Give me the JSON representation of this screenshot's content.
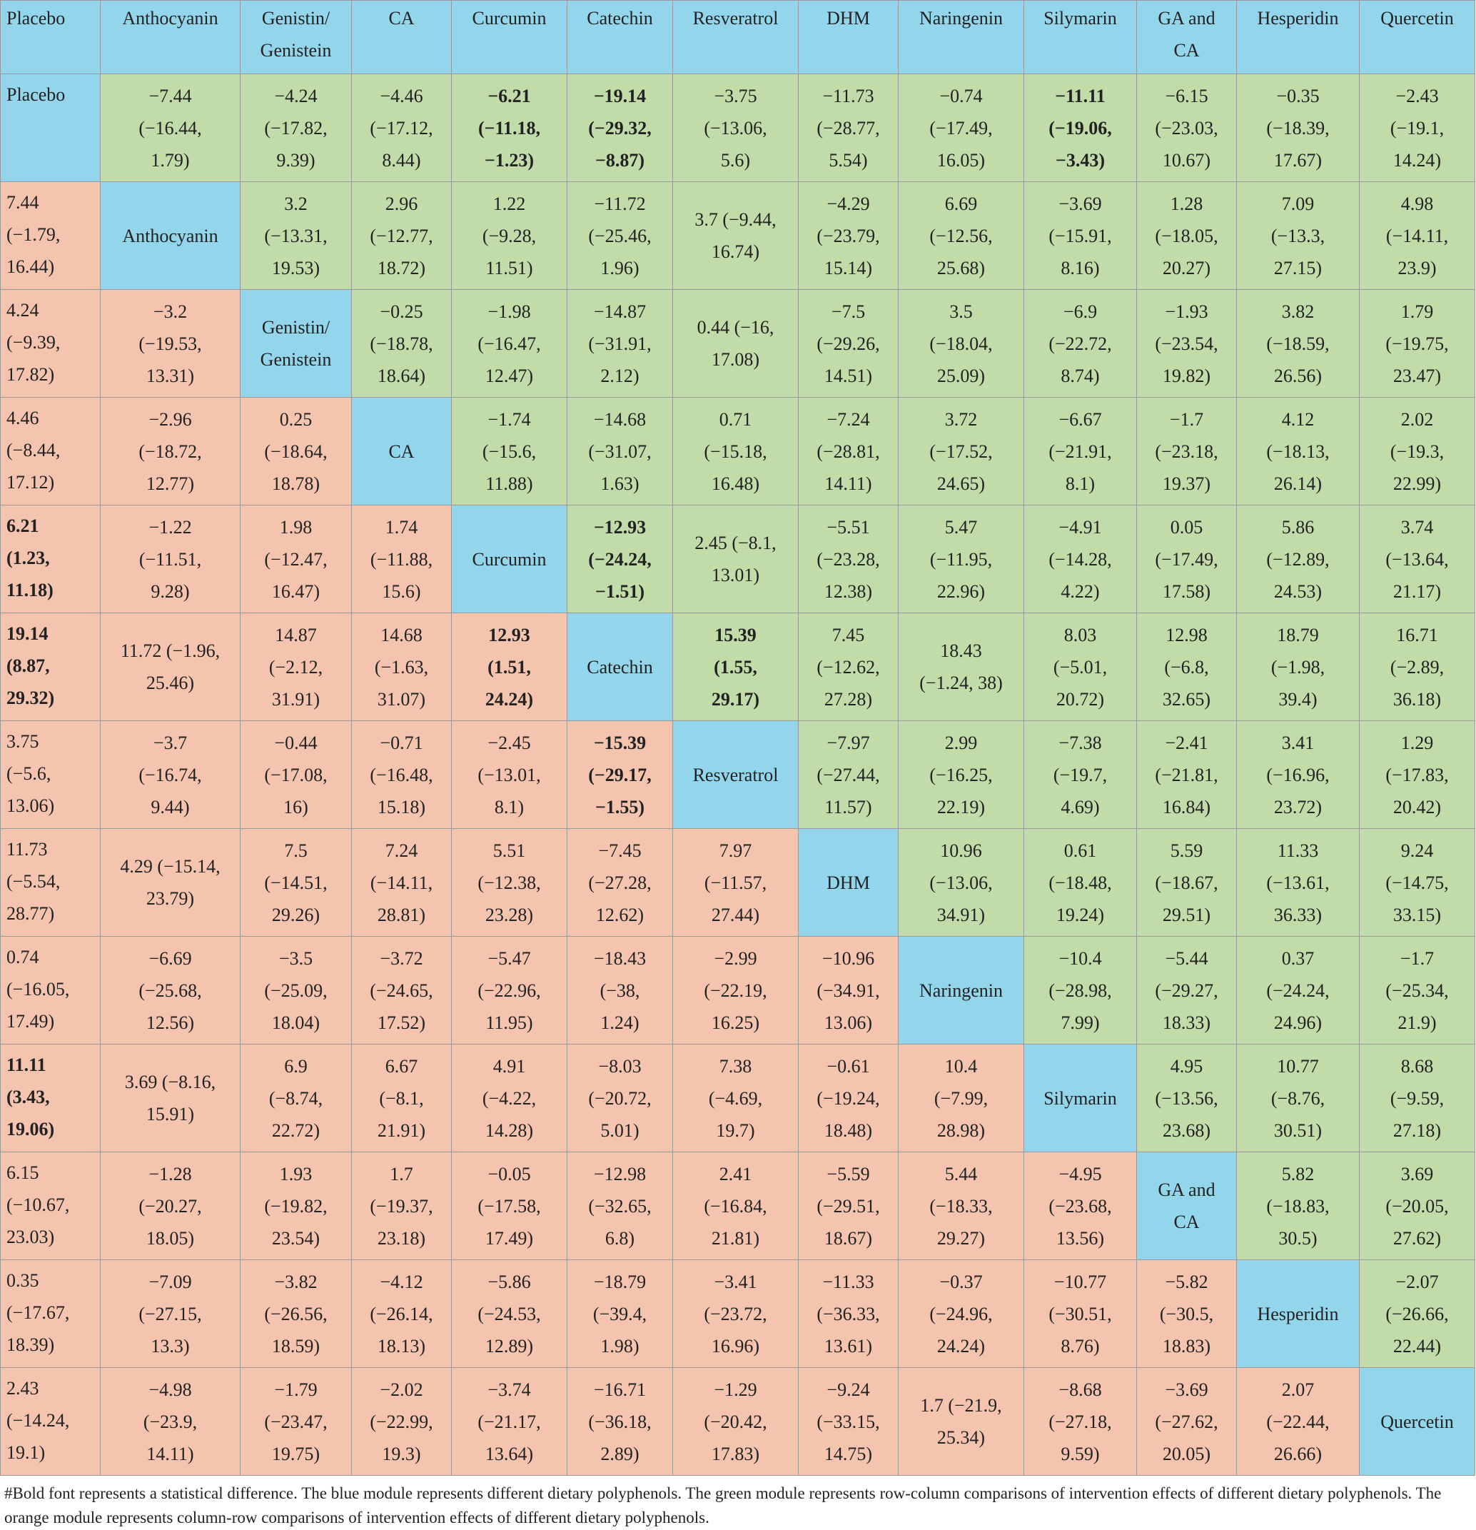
{
  "table": {
    "header": [
      "Placebo",
      "Anthocyanin",
      "Genistin/\nGenistein",
      "CA",
      "Curcumin",
      "Catechin",
      "Resveratrol",
      "DHM",
      "Naringenin",
      "Silymarin",
      "GA and\nCA",
      "Hesperidin",
      "Quercetin"
    ],
    "rows": [
      [
        {
          "t": "Placebo",
          "k": "label"
        },
        {
          "t": "−7.44\n(−16.44,\n1.79)",
          "k": "up"
        },
        {
          "t": "−4.24\n(−17.82,\n9.39)",
          "k": "up"
        },
        {
          "t": "−4.46\n(−17.12,\n8.44)",
          "k": "up"
        },
        {
          "t": "−6.21\n(−11.18,\n−1.23)",
          "k": "up",
          "b": true
        },
        {
          "t": "−19.14\n(−29.32,\n−8.87)",
          "k": "up",
          "b": true
        },
        {
          "t": "−3.75\n(−13.06,\n5.6)",
          "k": "up"
        },
        {
          "t": "−11.73\n(−28.77,\n5.54)",
          "k": "up"
        },
        {
          "t": "−0.74\n(−17.49,\n16.05)",
          "k": "up"
        },
        {
          "t": "−11.11\n(−19.06,\n−3.43)",
          "k": "up",
          "b": true
        },
        {
          "t": "−6.15\n(−23.03,\n10.67)",
          "k": "up"
        },
        {
          "t": "−0.35\n(−18.39,\n17.67)",
          "k": "up"
        },
        {
          "t": "−2.43\n(−19.1,\n14.24)",
          "k": "up"
        }
      ],
      [
        {
          "t": "7.44\n(−1.79,\n16.44)",
          "k": "low"
        },
        {
          "t": "Anthocyanin",
          "k": "label"
        },
        {
          "t": "3.2\n(−13.31,\n19.53)",
          "k": "up"
        },
        {
          "t": "2.96\n(−12.77,\n18.72)",
          "k": "up"
        },
        {
          "t": "1.22\n(−9.28,\n11.51)",
          "k": "up"
        },
        {
          "t": "−11.72\n(−25.46,\n1.96)",
          "k": "up"
        },
        {
          "t": "3.7 (−9.44,\n16.74)",
          "k": "up"
        },
        {
          "t": "−4.29\n(−23.79,\n15.14)",
          "k": "up"
        },
        {
          "t": "6.69\n(−12.56,\n25.68)",
          "k": "up"
        },
        {
          "t": "−3.69\n(−15.91,\n8.16)",
          "k": "up"
        },
        {
          "t": "1.28\n(−18.05,\n20.27)",
          "k": "up"
        },
        {
          "t": "7.09\n(−13.3,\n27.15)",
          "k": "up"
        },
        {
          "t": "4.98\n(−14.11,\n23.9)",
          "k": "up"
        }
      ],
      [
        {
          "t": "4.24\n(−9.39,\n17.82)",
          "k": "low"
        },
        {
          "t": "−3.2\n(−19.53,\n13.31)",
          "k": "low"
        },
        {
          "t": "Genistin/\nGenistein",
          "k": "label"
        },
        {
          "t": "−0.25\n(−18.78,\n18.64)",
          "k": "up"
        },
        {
          "t": "−1.98\n(−16.47,\n12.47)",
          "k": "up"
        },
        {
          "t": "−14.87\n(−31.91,\n2.12)",
          "k": "up"
        },
        {
          "t": "0.44 (−16,\n17.08)",
          "k": "up"
        },
        {
          "t": "−7.5\n(−29.26,\n14.51)",
          "k": "up"
        },
        {
          "t": "3.5\n(−18.04,\n25.09)",
          "k": "up"
        },
        {
          "t": "−6.9\n(−22.72,\n8.74)",
          "k": "up"
        },
        {
          "t": "−1.93\n(−23.54,\n19.82)",
          "k": "up"
        },
        {
          "t": "3.82\n(−18.59,\n26.56)",
          "k": "up"
        },
        {
          "t": "1.79\n(−19.75,\n23.47)",
          "k": "up"
        }
      ],
      [
        {
          "t": "4.46\n(−8.44,\n17.12)",
          "k": "low"
        },
        {
          "t": "−2.96\n(−18.72,\n12.77)",
          "k": "low"
        },
        {
          "t": "0.25\n(−18.64,\n18.78)",
          "k": "low"
        },
        {
          "t": "CA",
          "k": "label"
        },
        {
          "t": "−1.74\n(−15.6,\n11.88)",
          "k": "up"
        },
        {
          "t": "−14.68\n(−31.07,\n1.63)",
          "k": "up"
        },
        {
          "t": "0.71\n(−15.18,\n16.48)",
          "k": "up"
        },
        {
          "t": "−7.24\n(−28.81,\n14.11)",
          "k": "up"
        },
        {
          "t": "3.72\n(−17.52,\n24.65)",
          "k": "up"
        },
        {
          "t": "−6.67\n(−21.91,\n8.1)",
          "k": "up"
        },
        {
          "t": "−1.7\n(−23.18,\n19.37)",
          "k": "up"
        },
        {
          "t": "4.12\n(−18.13,\n26.14)",
          "k": "up"
        },
        {
          "t": "2.02\n(−19.3,\n22.99)",
          "k": "up"
        }
      ],
      [
        {
          "t": "6.21\n(1.23,\n11.18)",
          "k": "low",
          "b": true
        },
        {
          "t": "−1.22\n(−11.51,\n9.28)",
          "k": "low"
        },
        {
          "t": "1.98\n(−12.47,\n16.47)",
          "k": "low"
        },
        {
          "t": "1.74\n(−11.88,\n15.6)",
          "k": "low"
        },
        {
          "t": "Curcumin",
          "k": "label"
        },
        {
          "t": "−12.93\n(−24.24,\n−1.51)",
          "k": "up",
          "b": true
        },
        {
          "t": "2.45 (−8.1,\n13.01)",
          "k": "up"
        },
        {
          "t": "−5.51\n(−23.28,\n12.38)",
          "k": "up"
        },
        {
          "t": "5.47\n(−11.95,\n22.96)",
          "k": "up"
        },
        {
          "t": "−4.91\n(−14.28,\n4.22)",
          "k": "up"
        },
        {
          "t": "0.05\n(−17.49,\n17.58)",
          "k": "up"
        },
        {
          "t": "5.86\n(−12.89,\n24.53)",
          "k": "up"
        },
        {
          "t": "3.74\n(−13.64,\n21.17)",
          "k": "up"
        }
      ],
      [
        {
          "t": "19.14\n(8.87,\n29.32)",
          "k": "low",
          "b": true
        },
        {
          "t": "11.72 (−1.96,\n25.46)",
          "k": "low"
        },
        {
          "t": "14.87\n(−2.12,\n31.91)",
          "k": "low"
        },
        {
          "t": "14.68\n(−1.63,\n31.07)",
          "k": "low"
        },
        {
          "t": "12.93\n(1.51,\n24.24)",
          "k": "low",
          "b": true
        },
        {
          "t": "Catechin",
          "k": "label"
        },
        {
          "t": "15.39\n(1.55,\n29.17)",
          "k": "up",
          "b": true
        },
        {
          "t": "7.45\n(−12.62,\n27.28)",
          "k": "up"
        },
        {
          "t": "18.43\n(−1.24, 38)",
          "k": "up"
        },
        {
          "t": "8.03\n(−5.01,\n20.72)",
          "k": "up"
        },
        {
          "t": "12.98\n(−6.8,\n32.65)",
          "k": "up"
        },
        {
          "t": "18.79\n(−1.98,\n39.4)",
          "k": "up"
        },
        {
          "t": "16.71\n(−2.89,\n36.18)",
          "k": "up"
        }
      ],
      [
        {
          "t": "3.75\n(−5.6,\n13.06)",
          "k": "low"
        },
        {
          "t": "−3.7\n(−16.74,\n9.44)",
          "k": "low"
        },
        {
          "t": "−0.44\n(−17.08,\n16)",
          "k": "low"
        },
        {
          "t": "−0.71\n(−16.48,\n15.18)",
          "k": "low"
        },
        {
          "t": "−2.45\n(−13.01,\n8.1)",
          "k": "low"
        },
        {
          "t": "−15.39\n(−29.17,\n−1.55)",
          "k": "low",
          "b": true
        },
        {
          "t": "Resveratrol",
          "k": "label"
        },
        {
          "t": "−7.97\n(−27.44,\n11.57)",
          "k": "up"
        },
        {
          "t": "2.99\n(−16.25,\n22.19)",
          "k": "up"
        },
        {
          "t": "−7.38\n(−19.7,\n4.69)",
          "k": "up"
        },
        {
          "t": "−2.41\n(−21.81,\n16.84)",
          "k": "up"
        },
        {
          "t": "3.41\n(−16.96,\n23.72)",
          "k": "up"
        },
        {
          "t": "1.29\n(−17.83,\n20.42)",
          "k": "up"
        }
      ],
      [
        {
          "t": "11.73\n(−5.54,\n28.77)",
          "k": "low"
        },
        {
          "t": "4.29 (−15.14,\n23.79)",
          "k": "low"
        },
        {
          "t": "7.5\n(−14.51,\n29.26)",
          "k": "low"
        },
        {
          "t": "7.24\n(−14.11,\n28.81)",
          "k": "low"
        },
        {
          "t": "5.51\n(−12.38,\n23.28)",
          "k": "low"
        },
        {
          "t": "−7.45\n(−27.28,\n12.62)",
          "k": "low"
        },
        {
          "t": "7.97\n(−11.57,\n27.44)",
          "k": "low"
        },
        {
          "t": "DHM",
          "k": "label"
        },
        {
          "t": "10.96\n(−13.06,\n34.91)",
          "k": "up"
        },
        {
          "t": "0.61\n(−18.48,\n19.24)",
          "k": "up"
        },
        {
          "t": "5.59\n(−18.67,\n29.51)",
          "k": "up"
        },
        {
          "t": "11.33\n(−13.61,\n36.33)",
          "k": "up"
        },
        {
          "t": "9.24\n(−14.75,\n33.15)",
          "k": "up"
        }
      ],
      [
        {
          "t": "0.74\n(−16.05,\n17.49)",
          "k": "low"
        },
        {
          "t": "−6.69\n(−25.68,\n12.56)",
          "k": "low"
        },
        {
          "t": "−3.5\n(−25.09,\n18.04)",
          "k": "low"
        },
        {
          "t": "−3.72\n(−24.65,\n17.52)",
          "k": "low"
        },
        {
          "t": "−5.47\n(−22.96,\n11.95)",
          "k": "low"
        },
        {
          "t": "−18.43\n(−38,\n1.24)",
          "k": "low"
        },
        {
          "t": "−2.99\n(−22.19,\n16.25)",
          "k": "low"
        },
        {
          "t": "−10.96\n(−34.91,\n13.06)",
          "k": "low"
        },
        {
          "t": "Naringenin",
          "k": "label"
        },
        {
          "t": "−10.4\n(−28.98,\n7.99)",
          "k": "up"
        },
        {
          "t": "−5.44\n(−29.27,\n18.33)",
          "k": "up"
        },
        {
          "t": "0.37\n(−24.24,\n24.96)",
          "k": "up"
        },
        {
          "t": "−1.7\n(−25.34,\n21.9)",
          "k": "up"
        }
      ],
      [
        {
          "t": "11.11\n(3.43,\n19.06)",
          "k": "low",
          "b": true
        },
        {
          "t": "3.69 (−8.16,\n15.91)",
          "k": "low"
        },
        {
          "t": "6.9\n(−8.74,\n22.72)",
          "k": "low"
        },
        {
          "t": "6.67\n(−8.1,\n21.91)",
          "k": "low"
        },
        {
          "t": "4.91\n(−4.22,\n14.28)",
          "k": "low"
        },
        {
          "t": "−8.03\n(−20.72,\n5.01)",
          "k": "low"
        },
        {
          "t": "7.38\n(−4.69,\n19.7)",
          "k": "low"
        },
        {
          "t": "−0.61\n(−19.24,\n18.48)",
          "k": "low"
        },
        {
          "t": "10.4\n(−7.99,\n28.98)",
          "k": "low"
        },
        {
          "t": "Silymarin",
          "k": "label"
        },
        {
          "t": "4.95\n(−13.56,\n23.68)",
          "k": "up"
        },
        {
          "t": "10.77\n(−8.76,\n30.51)",
          "k": "up"
        },
        {
          "t": "8.68\n(−9.59,\n27.18)",
          "k": "up"
        }
      ],
      [
        {
          "t": "6.15\n(−10.67,\n23.03)",
          "k": "low"
        },
        {
          "t": "−1.28\n(−20.27,\n18.05)",
          "k": "low"
        },
        {
          "t": "1.93\n(−19.82,\n23.54)",
          "k": "low"
        },
        {
          "t": "1.7\n(−19.37,\n23.18)",
          "k": "low"
        },
        {
          "t": "−0.05\n(−17.58,\n17.49)",
          "k": "low"
        },
        {
          "t": "−12.98\n(−32.65,\n6.8)",
          "k": "low"
        },
        {
          "t": "2.41\n(−16.84,\n21.81)",
          "k": "low"
        },
        {
          "t": "−5.59\n(−29.51,\n18.67)",
          "k": "low"
        },
        {
          "t": "5.44\n(−18.33,\n29.27)",
          "k": "low"
        },
        {
          "t": "−4.95\n(−23.68,\n13.56)",
          "k": "low"
        },
        {
          "t": "GA and\nCA",
          "k": "label"
        },
        {
          "t": "5.82\n(−18.83,\n30.5)",
          "k": "up"
        },
        {
          "t": "3.69\n(−20.05,\n27.62)",
          "k": "up"
        }
      ],
      [
        {
          "t": "0.35\n(−17.67,\n18.39)",
          "k": "low"
        },
        {
          "t": "−7.09\n(−27.15,\n13.3)",
          "k": "low"
        },
        {
          "t": "−3.82\n(−26.56,\n18.59)",
          "k": "low"
        },
        {
          "t": "−4.12\n(−26.14,\n18.13)",
          "k": "low"
        },
        {
          "t": "−5.86\n(−24.53,\n12.89)",
          "k": "low"
        },
        {
          "t": "−18.79\n(−39.4,\n1.98)",
          "k": "low"
        },
        {
          "t": "−3.41\n(−23.72,\n16.96)",
          "k": "low"
        },
        {
          "t": "−11.33\n(−36.33,\n13.61)",
          "k": "low"
        },
        {
          "t": "−0.37\n(−24.96,\n24.24)",
          "k": "low"
        },
        {
          "t": "−10.77\n(−30.51,\n8.76)",
          "k": "low"
        },
        {
          "t": "−5.82\n(−30.5,\n18.83)",
          "k": "low"
        },
        {
          "t": "Hesperidin",
          "k": "label"
        },
        {
          "t": "−2.07\n(−26.66,\n22.44)",
          "k": "up"
        }
      ],
      [
        {
          "t": "2.43\n(−14.24,\n19.1)",
          "k": "low"
        },
        {
          "t": "−4.98\n(−23.9,\n14.11)",
          "k": "low"
        },
        {
          "t": "−1.79\n(−23.47,\n19.75)",
          "k": "low"
        },
        {
          "t": "−2.02\n(−22.99,\n19.3)",
          "k": "low"
        },
        {
          "t": "−3.74\n(−21.17,\n13.64)",
          "k": "low"
        },
        {
          "t": "−16.71\n(−36.18,\n2.89)",
          "k": "low"
        },
        {
          "t": "−1.29\n(−20.42,\n17.83)",
          "k": "low"
        },
        {
          "t": "−9.24\n(−33.15,\n14.75)",
          "k": "low"
        },
        {
          "t": "1.7 (−21.9,\n25.34)",
          "k": "low"
        },
        {
          "t": "−8.68\n(−27.18,\n9.59)",
          "k": "low"
        },
        {
          "t": "−3.69\n(−27.62,\n20.05)",
          "k": "low"
        },
        {
          "t": "2.07\n(−22.44,\n26.66)",
          "k": "low"
        },
        {
          "t": "Quercetin",
          "k": "label"
        }
      ]
    ]
  },
  "footnote": "#Bold font represents a statistical difference. The blue module represents different dietary polyphenols. The green module represents row-column comparisons of intervention effects of different dietary polyphenols. The orange module represents column-row comparisons of intervention effects of different dietary polyphenols.",
  "colors": {
    "label_blue": "#93d6ec",
    "upper_green": "#c1dca8",
    "lower_orange": "#f4c4ae"
  }
}
